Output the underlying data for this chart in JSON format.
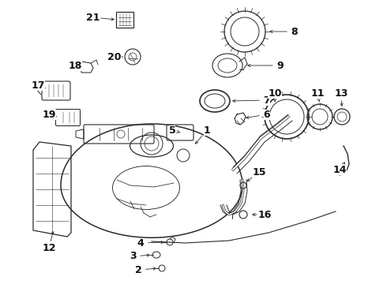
{
  "background_color": "#ffffff",
  "line_color": "#2a2a2a",
  "text_color": "#111111",
  "fig_width": 4.9,
  "fig_height": 3.6,
  "dpi": 100
}
